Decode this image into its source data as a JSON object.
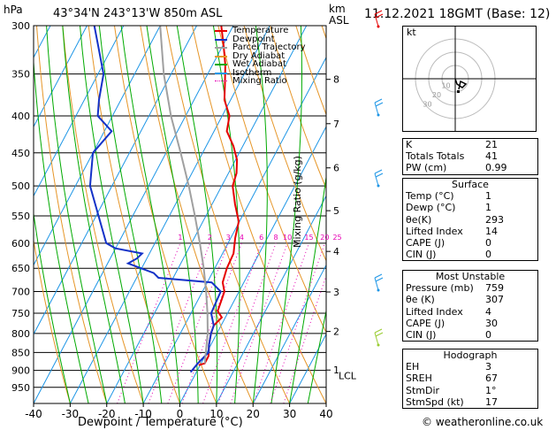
{
  "header": {
    "pressure_unit": "hPa",
    "location": "43°34'N  243°13'W  850m  ASL",
    "km_label": "km",
    "asl_label": "ASL",
    "datetime": "11.12.2021  18GMT  (Base: 12)"
  },
  "legend": [
    {
      "label": "Temperature",
      "color": "#e60000"
    },
    {
      "label": "Dewpoint",
      "color": "#1432c8"
    },
    {
      "label": "Parcel Trajectory",
      "color": "#a0a0a0"
    },
    {
      "label": "Dry Adiabat",
      "color": "#e69628"
    },
    {
      "label": "Wet Adiabat",
      "color": "#00aa00"
    },
    {
      "label": "Isotherm",
      "color": "#1e96e6"
    },
    {
      "label": "Mixing Ratio",
      "color": "#e600b4"
    }
  ],
  "chart_data": {
    "type": "line",
    "xlabel": "Dewpoint / Temperature (°C)",
    "ylabel": "hPa",
    "y2label": "Mixing Ratio (g/kg)",
    "x_ticks": [
      -40,
      -30,
      -20,
      -10,
      0,
      10,
      20,
      30,
      40
    ],
    "xlim": [
      -40,
      40
    ],
    "ylim": [
      1000,
      300
    ],
    "y_scale": "log",
    "pressure_ticks": [
      300,
      350,
      400,
      450,
      500,
      550,
      600,
      650,
      700,
      750,
      800,
      850,
      900,
      950
    ],
    "km_ticks": [
      {
        "km": "8",
        "p": 356
      },
      {
        "km": "7",
        "p": 410
      },
      {
        "km": "6",
        "p": 472
      },
      {
        "km": "5",
        "p": 541
      },
      {
        "km": "4",
        "p": 616
      },
      {
        "km": "3",
        "p": 701
      },
      {
        "km": "2",
        "p": 795
      },
      {
        "km": "1",
        "p": 899
      }
    ],
    "lcl": {
      "label": "LCL",
      "p": 905
    },
    "mixing_ratio_labels": [
      "1",
      "2",
      "3",
      "4",
      "6",
      "8",
      "10",
      "15",
      "20",
      "25"
    ],
    "isotherm_skew": 30,
    "series": [
      {
        "name": "Temperature",
        "points": [
          [
            -0.4,
            885
          ],
          [
            1,
            880
          ],
          [
            1,
            860
          ],
          [
            0.5,
            850
          ],
          [
            -0.5,
            830
          ],
          [
            -1.6,
            800
          ],
          [
            -2,
            780
          ],
          [
            -1,
            760
          ],
          [
            -3,
            745
          ],
          [
            -4,
            700
          ],
          [
            -5.8,
            680
          ],
          [
            -6.7,
            650
          ],
          [
            -7,
            620
          ],
          [
            -8.8,
            590
          ],
          [
            -10.2,
            560
          ],
          [
            -13.7,
            530
          ],
          [
            -17,
            500
          ],
          [
            -17.8,
            480
          ],
          [
            -19.6,
            460
          ],
          [
            -22.6,
            440
          ],
          [
            -26.5,
            420
          ],
          [
            -28,
            400
          ],
          [
            -31.7,
            380
          ],
          [
            -34,
            360
          ],
          [
            -36.5,
            340
          ],
          [
            -39.7,
            320
          ],
          [
            -43.3,
            300
          ]
        ]
      },
      {
        "name": "Dewpoint",
        "points": [
          [
            -1.6,
            905
          ],
          [
            -0.9,
            880
          ],
          [
            0,
            860
          ],
          [
            0.5,
            850
          ],
          [
            -0.5,
            830
          ],
          [
            -1.6,
            800
          ],
          [
            -2,
            780
          ],
          [
            -4.5,
            750
          ],
          [
            -5,
            700
          ],
          [
            -8.8,
            680
          ],
          [
            -24,
            670
          ],
          [
            -26,
            660
          ],
          [
            -34.4,
            640
          ],
          [
            -32.7,
            630
          ],
          [
            -32,
            620
          ],
          [
            -40,
            610
          ],
          [
            -43.3,
            600
          ],
          [
            -56,
            500
          ],
          [
            -60,
            450
          ],
          [
            -58,
            420
          ],
          [
            -64,
            400
          ],
          [
            -66,
            380
          ],
          [
            -68.5,
            350
          ],
          [
            -74,
            320
          ],
          [
            -78,
            300
          ]
        ]
      },
      {
        "name": "Parcel Trajectory",
        "points": [
          [
            1,
            880
          ],
          [
            -2.5,
            800
          ],
          [
            -5.5,
            750
          ],
          [
            -9,
            700
          ],
          [
            -13,
            650
          ],
          [
            -17.7,
            600
          ],
          [
            -23,
            550
          ],
          [
            -29,
            500
          ],
          [
            -36,
            450
          ],
          [
            -44,
            400
          ],
          [
            -52,
            350
          ],
          [
            -60,
            300
          ]
        ]
      }
    ]
  },
  "hodograph": {
    "label": "kt",
    "ring_labels": [
      "10",
      "20",
      "30"
    ]
  },
  "indices": [
    {
      "label": "K",
      "value": "21"
    },
    {
      "label": "Totals Totals",
      "value": "41"
    },
    {
      "label": "PW (cm)",
      "value": "0.99"
    }
  ],
  "surface": {
    "title": "Surface",
    "rows": [
      {
        "label": "Temp (°C)",
        "value": "1"
      },
      {
        "label": "Dewp (°C)",
        "value": "1"
      },
      {
        "label": "θe(K)",
        "value": "293"
      },
      {
        "label": "Lifted Index",
        "value": "14"
      },
      {
        "label": "CAPE (J)",
        "value": "0"
      },
      {
        "label": "CIN (J)",
        "value": "0"
      }
    ]
  },
  "unstable": {
    "title": "Most Unstable",
    "rows": [
      {
        "label": "Pressure (mb)",
        "value": "759"
      },
      {
        "label": "θe (K)",
        "value": "307"
      },
      {
        "label": "Lifted Index",
        "value": "4"
      },
      {
        "label": "CAPE (J)",
        "value": "30"
      },
      {
        "label": "CIN (J)",
        "value": "0"
      }
    ]
  },
  "hodo_table": {
    "title": "Hodograph",
    "rows": [
      {
        "label": "EH",
        "value": "3"
      },
      {
        "label": "SREH",
        "value": "67"
      },
      {
        "label": "StmDir",
        "value": "1°"
      },
      {
        "label": "StmSpd (kt)",
        "value": "17"
      }
    ]
  },
  "footer": {
    "copyright": "© weatheronline.co.uk"
  }
}
